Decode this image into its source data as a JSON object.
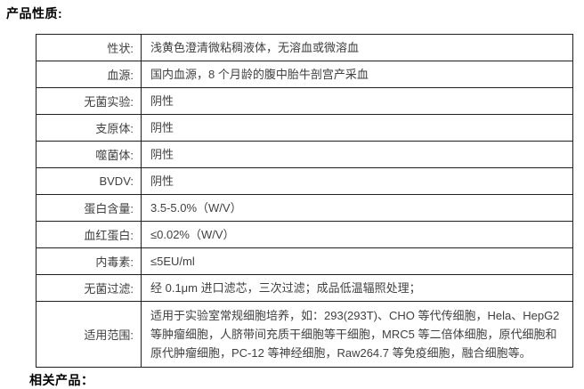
{
  "page": {
    "title": "产品性质:",
    "footer_partial_heading": "相关产品："
  },
  "table": {
    "rows": [
      {
        "label": "性状:",
        "value": "浅黄色澄清微粘稠液体，无溶血或微溶血"
      },
      {
        "label": "血源:",
        "value": "国内血源，8 个月龄的腹中胎牛剖宫产采血"
      },
      {
        "label": "无菌实验:",
        "value": "阴性"
      },
      {
        "label": "支原体:",
        "value": "阴性"
      },
      {
        "label": "噬菌体:",
        "value": "阴性"
      },
      {
        "label": "BVDV:",
        "value": "阴性"
      },
      {
        "label": "蛋白含量:",
        "value": "3.5-5.0%（W/V）"
      },
      {
        "label": "血红蛋白:",
        "value": "≤0.02%（W/V）"
      },
      {
        "label": "内毒素:",
        "value": "≤5EU/ml"
      },
      {
        "label": "无菌过滤:",
        "value": "经 0.1μm 进口滤芯，三次过滤；成品低温辐照处理；"
      },
      {
        "label": "适用范围:",
        "value": "适用于实验室常规细胞培养，如：293(293T)、CHO 等代传细胞，Hela、HepG2 等肿瘤细胞，人脐带间充质干细胞等干细胞，MRC5 等二倍体细胞，原代细胞和原代肿瘤细胞，PC-12 等神经细胞，Raw264.7 等免疫细胞，融合细胞等。"
      }
    ]
  },
  "colors": {
    "background": "#ffffff",
    "text": "#404040",
    "title": "#000000",
    "border": "#1f1f1f"
  }
}
